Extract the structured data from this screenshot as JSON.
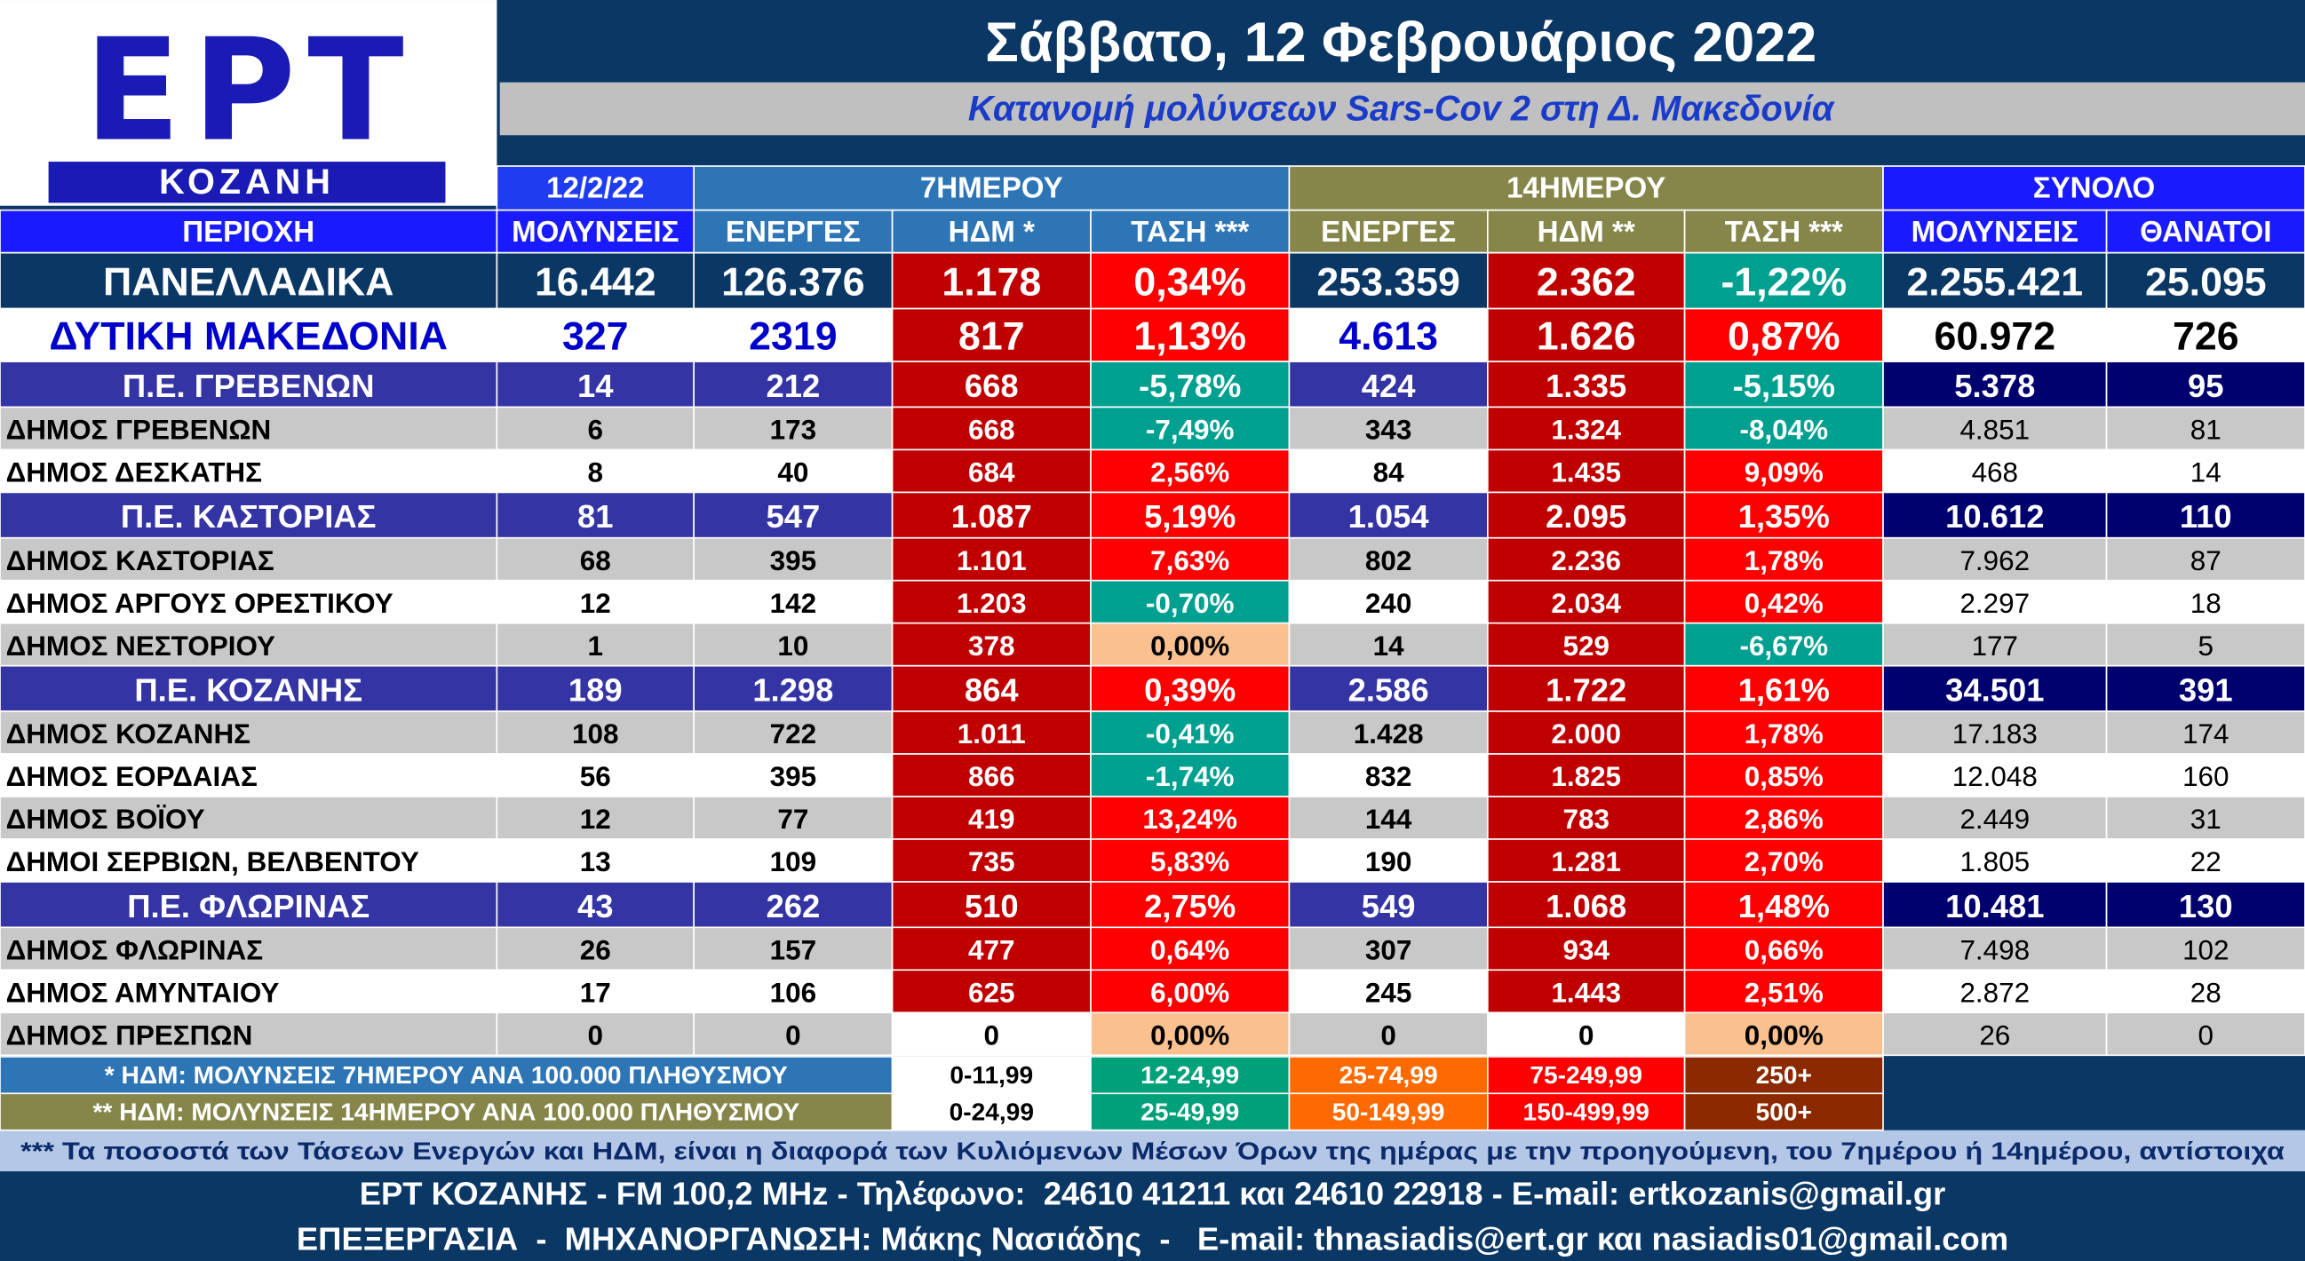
{
  "logo": {
    "name": "ΕΡΤ",
    "city": "ΚΟΖΑΝΗ"
  },
  "header": {
    "title": "Σάββατο, 12 Φεβρουάριος 2022",
    "subtitle": "Κατανομή μολύνσεων Sars-Cov 2 στη Δ. Μακεδονία"
  },
  "table": {
    "groups": [
      "12/2/22",
      "7ΗΜΕΡΟΥ",
      "14ΗΜΕΡΟΥ",
      "ΣΥΝΟΛΟ"
    ],
    "columns": [
      "ΠΕΡΙΟΧΗ",
      "ΜΟΛΥΝΣΕΙΣ",
      "ΕΝΕΡΓΕΣ",
      "ΗΔΜ *",
      "ΤΑΣΗ ***",
      "ΕΝΕΡΓΕΣ",
      "ΗΔΜ **",
      "ΤΑΣΗ ***",
      "ΜΟΛΥΝΣΕΙΣ",
      "ΘΑΝΑΤΟΙ"
    ],
    "rows": [
      {
        "cells": [
          "ΠΑΝΕΛΛΑΔΙΚΑ",
          "16.442",
          "126.376",
          "1.178",
          "0,34%",
          "253.359",
          "2.362",
          "-1,22%",
          "2.255.421",
          "25.095"
        ],
        "fills": [
          "#0b3764",
          "#0b3764",
          "#0b3764",
          "#c00000",
          "#ff0000",
          "#0b3764",
          "#c00000",
          "#00a090",
          "#0b3764",
          "#0b3764"
        ]
      },
      {
        "cells": [
          "ΔΥΤΙΚΗ ΜΑΚΕΔΟΝΙΑ",
          "327",
          "2319",
          "817",
          "1,13%",
          "4.613",
          "1.626",
          "0,87%",
          "60.972",
          "726"
        ],
        "fills": [
          "#ffffff",
          "#ffffff",
          "#ffffff",
          "#c00000",
          "#ff0000",
          "#ffffff",
          "#c00000",
          "#ff0000",
          "#ffffff",
          "#ffffff"
        ],
        "text_color": "#0000cc"
      },
      {
        "cells": [
          "Π.Ε. ΓΡΕΒΕΝΩΝ",
          "14",
          "212",
          "668",
          "-5,78%",
          "424",
          "1.335",
          "-5,15%",
          "5.378",
          "95"
        ],
        "fills": [
          "#3434a4",
          "#3434a4",
          "#3434a4",
          "#c00000",
          "#00a090",
          "#3434a4",
          "#c00000",
          "#00a090",
          "#00006e",
          "#00006e"
        ]
      },
      {
        "cells": [
          "ΔΗΜΟΣ ΓΡΕΒΕΝΩΝ",
          "6",
          "173",
          "668",
          "-7,49%",
          "343",
          "1.324",
          "-8,04%",
          "4.851",
          "81"
        ],
        "fills": [
          "#c8c8c8",
          "#c8c8c8",
          "#c8c8c8",
          "#c00000",
          "#00a090",
          "#c8c8c8",
          "#c00000",
          "#00a090",
          "#c8c8c8",
          "#c8c8c8"
        ]
      },
      {
        "cells": [
          "ΔΗΜΟΣ ΔΕΣΚΑΤΗΣ",
          "8",
          "40",
          "684",
          "2,56%",
          "84",
          "1.435",
          "9,09%",
          "468",
          "14"
        ],
        "fills": [
          "#ffffff",
          "#ffffff",
          "#ffffff",
          "#c00000",
          "#ff0000",
          "#ffffff",
          "#c00000",
          "#ff0000",
          "#ffffff",
          "#ffffff"
        ]
      },
      {
        "cells": [
          "Π.Ε. ΚΑΣΤΟΡΙΑΣ",
          "81",
          "547",
          "1.087",
          "5,19%",
          "1.054",
          "2.095",
          "1,35%",
          "10.612",
          "110"
        ],
        "fills": [
          "#3434a4",
          "#3434a4",
          "#3434a4",
          "#c00000",
          "#ff0000",
          "#3434a4",
          "#c00000",
          "#ff0000",
          "#00006e",
          "#00006e"
        ]
      },
      {
        "cells": [
          "ΔΗΜΟΣ ΚΑΣΤΟΡΙΑΣ",
          "68",
          "395",
          "1.101",
          "7,63%",
          "802",
          "2.236",
          "1,78%",
          "7.962",
          "87"
        ],
        "fills": [
          "#c8c8c8",
          "#c8c8c8",
          "#c8c8c8",
          "#c00000",
          "#ff0000",
          "#c8c8c8",
          "#c00000",
          "#ff0000",
          "#c8c8c8",
          "#c8c8c8"
        ]
      },
      {
        "cells": [
          "ΔΗΜΟΣ ΑΡΓΟΥΣ ΟΡΕΣΤΙΚΟΥ",
          "12",
          "142",
          "1.203",
          "-0,70%",
          "240",
          "2.034",
          "0,42%",
          "2.297",
          "18"
        ],
        "fills": [
          "#ffffff",
          "#ffffff",
          "#ffffff",
          "#c00000",
          "#00a090",
          "#ffffff",
          "#c00000",
          "#ff0000",
          "#ffffff",
          "#ffffff"
        ]
      },
      {
        "cells": [
          "ΔΗΜΟΣ ΝΕΣΤΟΡΙΟΥ",
          "1",
          "10",
          "378",
          "0,00%",
          "14",
          "529",
          "-6,67%",
          "177",
          "5"
        ],
        "fills": [
          "#c8c8c8",
          "#c8c8c8",
          "#c8c8c8",
          "#c00000",
          "#fac090",
          "#c8c8c8",
          "#c00000",
          "#00a090",
          "#c8c8c8",
          "#c8c8c8"
        ]
      },
      {
        "cells": [
          "Π.Ε. ΚΟΖΑΝΗΣ",
          "189",
          "1.298",
          "864",
          "0,39%",
          "2.586",
          "1.722",
          "1,61%",
          "34.501",
          "391"
        ],
        "fills": [
          "#3434a4",
          "#3434a4",
          "#3434a4",
          "#c00000",
          "#ff0000",
          "#3434a4",
          "#c00000",
          "#ff0000",
          "#00006e",
          "#00006e"
        ]
      },
      {
        "cells": [
          "ΔΗΜΟΣ ΚΟΖΑΝΗΣ",
          "108",
          "722",
          "1.011",
          "-0,41%",
          "1.428",
          "2.000",
          "1,78%",
          "17.183",
          "174"
        ],
        "fills": [
          "#c8c8c8",
          "#c8c8c8",
          "#c8c8c8",
          "#c00000",
          "#00a090",
          "#c8c8c8",
          "#c00000",
          "#ff0000",
          "#c8c8c8",
          "#c8c8c8"
        ]
      },
      {
        "cells": [
          "ΔΗΜΟΣ ΕΟΡΔΑΙΑΣ",
          "56",
          "395",
          "866",
          "-1,74%",
          "832",
          "1.825",
          "0,85%",
          "12.048",
          "160"
        ],
        "fills": [
          "#ffffff",
          "#ffffff",
          "#ffffff",
          "#c00000",
          "#00a090",
          "#ffffff",
          "#c00000",
          "#ff0000",
          "#ffffff",
          "#ffffff"
        ]
      },
      {
        "cells": [
          "ΔΗΜΟΣ ΒΟΪΟΥ",
          "12",
          "77",
          "419",
          "13,24%",
          "144",
          "783",
          "2,86%",
          "2.449",
          "31"
        ],
        "fills": [
          "#c8c8c8",
          "#c8c8c8",
          "#c8c8c8",
          "#c00000",
          "#ff0000",
          "#c8c8c8",
          "#c00000",
          "#ff0000",
          "#c8c8c8",
          "#c8c8c8"
        ]
      },
      {
        "cells": [
          "ΔΗΜΟΙ ΣΕΡΒΙΩΝ, ΒΕΛΒΕΝΤΟΥ",
          "13",
          "109",
          "735",
          "5,83%",
          "190",
          "1.281",
          "2,70%",
          "1.805",
          "22"
        ],
        "fills": [
          "#ffffff",
          "#ffffff",
          "#ffffff",
          "#c00000",
          "#ff0000",
          "#ffffff",
          "#c00000",
          "#ff0000",
          "#ffffff",
          "#ffffff"
        ]
      },
      {
        "cells": [
          "Π.Ε. ΦΛΩΡΙΝΑΣ",
          "43",
          "262",
          "510",
          "2,75%",
          "549",
          "1.068",
          "1,48%",
          "10.481",
          "130"
        ],
        "fills": [
          "#3434a4",
          "#3434a4",
          "#3434a4",
          "#c00000",
          "#ff0000",
          "#3434a4",
          "#c00000",
          "#ff0000",
          "#00006e",
          "#00006e"
        ]
      },
      {
        "cells": [
          "ΔΗΜΟΣ ΦΛΩΡΙΝΑΣ",
          "26",
          "157",
          "477",
          "0,64%",
          "307",
          "934",
          "0,66%",
          "7.498",
          "102"
        ],
        "fills": [
          "#c8c8c8",
          "#c8c8c8",
          "#c8c8c8",
          "#c00000",
          "#ff0000",
          "#c8c8c8",
          "#c00000",
          "#ff0000",
          "#c8c8c8",
          "#c8c8c8"
        ]
      },
      {
        "cells": [
          "ΔΗΜΟΣ ΑΜΥΝΤΑΙΟΥ",
          "17",
          "106",
          "625",
          "6,00%",
          "245",
          "1.443",
          "2,51%",
          "2.872",
          "28"
        ],
        "fills": [
          "#ffffff",
          "#ffffff",
          "#ffffff",
          "#c00000",
          "#ff0000",
          "#ffffff",
          "#c00000",
          "#ff0000",
          "#ffffff",
          "#ffffff"
        ]
      },
      {
        "cells": [
          "ΔΗΜΟΣ ΠΡΕΣΠΩΝ",
          "0",
          "0",
          "0",
          "0,00%",
          "0",
          "0",
          "0,00%",
          "26",
          "0"
        ],
        "fills": [
          "#c8c8c8",
          "#c8c8c8",
          "#c8c8c8",
          "#ffffff",
          "#fac090",
          "#c8c8c8",
          "#ffffff",
          "#fac090",
          "#c8c8c8",
          "#c8c8c8"
        ]
      }
    ]
  },
  "legend": [
    {
      "label": "* ΗΔΜ: ΜΟΛΥΝΣΕΙΣ 7ΗΜΕΡΟΥ ΑΝΑ 100.000 ΠΛΗΘΥΣΜΟΥ",
      "ranges": [
        "0-11,99",
        "12-24,99",
        "25-74,99",
        "75-249,99",
        "250+"
      ]
    },
    {
      "label": "** ΗΔΜ: ΜΟΛΥΝΣΕΙΣ 14ΗΜΕΡΟΥ ΑΝΑ 100.000 ΠΛΗΘΥΣΜΟΥ",
      "ranges": [
        "0-24,99",
        "25-49,99",
        "50-149,99",
        "150-499,99",
        "500+"
      ]
    }
  ],
  "legend_colors": [
    "#ffffff",
    "#00a07a",
    "#ff6a00",
    "#ff0000",
    "#8b2a00"
  ],
  "footnote": "*** Τα ποσοστά των Τάσεων Ενεργών και ΗΔΜ, είναι η διαφορά των Κυλιόμενων Μέσων Όρων της ημέρας με την προηγούμενη, του 7ημέρου ή 14ημέρου, αντίστοιχα",
  "footer": [
    "ΕΡΤ ΚΟΖΑΝΗΣ - FM 100,2 MHz - Τηλέφωνο:  24610 41211 και 24610 22918 - E-mail: ertkozanis@gmail.gr",
    "ΕΠΕΞΕΡΓΑΣΙΑ  -  ΜΗΧΑΝΟΡΓΑΝΩΣΗ: Μάκης Νασιάδης  -   E-mail: thnasiadis@ert.gr και nasiadis01@gmail.com"
  ]
}
